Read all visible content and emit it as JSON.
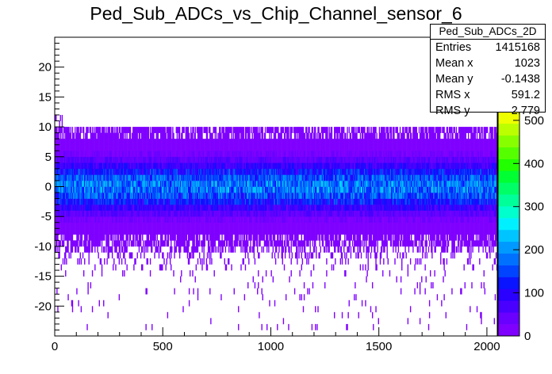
{
  "chart_data": {
    "type": "heatmap",
    "title": "Ped_Sub_ADCs_vs_Chip_Channel_sensor_6",
    "xlabel": "",
    "ylabel": "",
    "xlim": [
      0,
      2048
    ],
    "ylim": [
      -25,
      25
    ],
    "x_ticks": [
      "0",
      "500",
      "1000",
      "1500",
      "2000"
    ],
    "y_ticks": [
      "-20",
      "-15",
      "-10",
      "-5",
      "0",
      "5",
      "10",
      "15",
      "20"
    ],
    "z_ticks": [
      "0",
      "100",
      "200",
      "300",
      "400",
      "500"
    ],
    "zlim": [
      0,
      520
    ],
    "partial_label": "0",
    "stats": {
      "name": "Ped_Sub_ADCs_2D",
      "rows": [
        {
          "label": "Entries",
          "value": "1415168"
        },
        {
          "label": "Mean x",
          "value": "1023"
        },
        {
          "label": "Mean y",
          "value": "-0.1438"
        },
        {
          "label": "RMS x",
          "value": "591.2"
        },
        {
          "label": "RMS y",
          "value": "2.779"
        }
      ]
    },
    "palette": [
      "#7f00ff",
      "#6a00ff",
      "#4a00ff",
      "#2a00ff",
      "#0a14ff",
      "#0044ff",
      "#0070ff",
      "#0099ff",
      "#00c4ff",
      "#00f0ff",
      "#00ffcc",
      "#00ff99",
      "#00ff66",
      "#00ff33",
      "#22ff00",
      "#55ff00",
      "#88ff00",
      "#bbff00",
      "#eeff00"
    ]
  }
}
